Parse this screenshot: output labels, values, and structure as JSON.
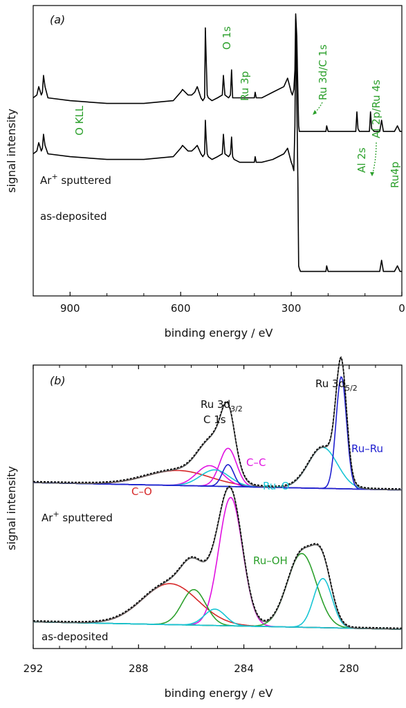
{
  "chart_data": [
    {
      "type": "line",
      "panel_label": "(a)",
      "xlabel": "binding energy / eV",
      "ylabel": "signal intensity",
      "xlim": [
        1000,
        0
      ],
      "x_reversed": true,
      "x_ticks": [
        900,
        600,
        300,
        0
      ],
      "y_ticks": "none",
      "grid": false,
      "legend": "none",
      "series": [
        {
          "name": "Ar+ sputtered",
          "color": "#000000",
          "x": [
            1000,
            990,
            985,
            978,
            975,
            972,
            968,
            960,
            900,
            800,
            700,
            620,
            600,
            595,
            580,
            570,
            562,
            555,
            545,
            540,
            535,
            533,
            531,
            528,
            525,
            515,
            500,
            487,
            484,
            480,
            470,
            465,
            462,
            459,
            455,
            440,
            420,
            400,
            398,
            395,
            380,
            350,
            320,
            310,
            300,
            297,
            293,
            290,
            288,
            285,
            282,
            280,
            278,
            275,
            270,
            260,
            220,
            206,
            204,
            200,
            180,
            160,
            125,
            122,
            119,
            115,
            100,
            88,
            85,
            82,
            75,
            60,
            55,
            50,
            40,
            20,
            12,
            5,
            0
          ],
          "y": [
            0.7,
            0.71,
            0.74,
            0.71,
            0.72,
            0.78,
            0.74,
            0.7,
            0.69,
            0.68,
            0.68,
            0.69,
            0.72,
            0.73,
            0.71,
            0.71,
            0.72,
            0.74,
            0.7,
            0.69,
            0.7,
            0.95,
            0.85,
            0.71,
            0.7,
            0.69,
            0.7,
            0.71,
            0.78,
            0.71,
            0.7,
            0.71,
            0.8,
            0.7,
            0.7,
            0.7,
            0.7,
            0.7,
            0.72,
            0.7,
            0.7,
            0.72,
            0.74,
            0.77,
            0.72,
            0.71,
            0.73,
            0.8,
            1.0,
            0.92,
            0.72,
            0.6,
            0.58,
            0.58,
            0.58,
            0.58,
            0.58,
            0.58,
            0.6,
            0.58,
            0.58,
            0.58,
            0.58,
            0.65,
            0.59,
            0.58,
            0.58,
            0.58,
            0.65,
            0.59,
            0.58,
            0.58,
            0.62,
            0.58,
            0.58,
            0.58,
            0.6,
            0.58,
            0.58
          ]
        },
        {
          "name": "as-deposited",
          "color": "#000000",
          "x": [
            1000,
            990,
            985,
            978,
            975,
            972,
            968,
            960,
            900,
            800,
            700,
            620,
            600,
            595,
            580,
            570,
            562,
            555,
            545,
            540,
            535,
            533,
            531,
            528,
            525,
            515,
            500,
            487,
            484,
            480,
            470,
            465,
            462,
            459,
            455,
            440,
            420,
            400,
            398,
            395,
            380,
            350,
            320,
            310,
            300,
            297,
            293,
            290,
            288,
            285,
            282,
            280,
            278,
            275,
            270,
            260,
            220,
            206,
            204,
            200,
            180,
            160,
            125,
            122,
            119,
            115,
            100,
            88,
            85,
            82,
            75,
            60,
            55,
            50,
            40,
            20,
            12,
            5,
            0
          ],
          "y": [
            0.5,
            0.51,
            0.54,
            0.51,
            0.52,
            0.57,
            0.53,
            0.5,
            0.49,
            0.48,
            0.48,
            0.49,
            0.52,
            0.53,
            0.51,
            0.51,
            0.52,
            0.53,
            0.5,
            0.49,
            0.5,
            0.62,
            0.56,
            0.5,
            0.49,
            0.48,
            0.49,
            0.5,
            0.57,
            0.5,
            0.49,
            0.5,
            0.56,
            0.49,
            0.48,
            0.47,
            0.47,
            0.47,
            0.49,
            0.47,
            0.47,
            0.48,
            0.5,
            0.52,
            0.47,
            0.46,
            0.44,
            0.6,
            0.98,
            0.7,
            0.4,
            0.1,
            0.09,
            0.08,
            0.08,
            0.08,
            0.08,
            0.08,
            0.1,
            0.08,
            0.08,
            0.08,
            0.08,
            0.08,
            0.08,
            0.08,
            0.08,
            0.08,
            0.08,
            0.08,
            0.08,
            0.08,
            0.12,
            0.08,
            0.08,
            0.08,
            0.1,
            0.08,
            0.08
          ]
        }
      ],
      "curve_labels": [
        {
          "text": "Ar",
          "sup": "+",
          "rest": " sputtered",
          "series": "Ar+ sputtered"
        },
        {
          "text": "as-deposited",
          "series": "as-deposited"
        }
      ],
      "annotations": [
        {
          "text": "O KLL",
          "color": "#2ca02c"
        },
        {
          "text": "O 1s",
          "color": "#2ca02c"
        },
        {
          "text": "Ru 3p",
          "color": "#2ca02c"
        },
        {
          "text": "Ru 3d/C 1s",
          "color": "#2ca02c"
        },
        {
          "text": "Al 2s",
          "color": "#2ca02c"
        },
        {
          "text": "Al 2p/Ru 4s",
          "color": "#2ca02c"
        },
        {
          "text": "Ru4p",
          "color": "#2ca02c"
        }
      ]
    },
    {
      "type": "line",
      "panel_label": "(b)",
      "xlabel": "binding energy / eV",
      "ylabel": "signal intensity",
      "xlim": [
        292,
        278
      ],
      "x_reversed": true,
      "x_ticks": [
        292,
        288,
        284,
        280
      ],
      "y_ticks": "none",
      "grid": false,
      "legend": "none",
      "curve_labels": [
        {
          "text": "Ar",
          "sup": "+",
          "rest": " sputtered"
        },
        {
          "text": "as-deposited"
        }
      ],
      "annotations": [
        {
          "text": "Ru 3d",
          "sub": "3/2",
          "color": "#111111"
        },
        {
          "text": "C 1s",
          "color": "#111111"
        },
        {
          "text": "Ru 3d",
          "sub": "5/2",
          "color": "#111111"
        },
        {
          "text": "C–O",
          "color": "#d62728"
        },
        {
          "text": "C–C",
          "color": "#e010e0"
        },
        {
          "text": "Ru–O",
          "color": "#17c5d5"
        },
        {
          "text": "Ru–Ru",
          "color": "#1f1fcf"
        },
        {
          "text": "Ru–OH",
          "color": "#2ca02c"
        }
      ],
      "components": {
        "sputtered": [
          {
            "label": "C–O",
            "color": "#d62728",
            "center": 286.5,
            "height": 0.055,
            "width": 1.2
          },
          {
            "label": "C–C",
            "color": "#e010e0",
            "center": 284.6,
            "height": 0.14,
            "width": 0.32
          },
          {
            "label": "C–C",
            "color": "#e010e0",
            "center": 285.3,
            "height": 0.075,
            "width": 0.5
          },
          {
            "label": "Ru–O",
            "color": "#17c5d5",
            "center": 281.0,
            "height": 0.15,
            "width": 0.55
          },
          {
            "label": "Ru–O",
            "color": "#17c5d5",
            "center": 285.1,
            "height": 0.06,
            "width": 0.55
          },
          {
            "label": "Ru–Ru",
            "color": "#1f1fcf",
            "center": 280.3,
            "height": 0.41,
            "width": 0.2
          },
          {
            "label": "Ru–Ru",
            "color": "#1f1fcf",
            "center": 284.6,
            "height": 0.08,
            "width": 0.22
          }
        ],
        "deposited": [
          {
            "label": "C–O",
            "color": "#d62728",
            "center": 286.8,
            "height": 0.15,
            "width": 1.05
          },
          {
            "label": "C–C",
            "color": "#e010e0",
            "center": 284.5,
            "height": 0.47,
            "width": 0.45
          },
          {
            "label": "Ru–OH",
            "color": "#2ca02c",
            "center": 281.8,
            "height": 0.27,
            "width": 0.55
          },
          {
            "label": "Ru–OH",
            "color": "#2ca02c",
            "center": 285.9,
            "height": 0.13,
            "width": 0.45
          },
          {
            "label": "Ru–O",
            "color": "#17c5d5",
            "center": 281.0,
            "height": 0.18,
            "width": 0.35
          },
          {
            "label": "Ru–O",
            "color": "#17c5d5",
            "center": 285.1,
            "height": 0.06,
            "width": 0.4
          }
        ]
      },
      "baselines": {
        "sputtered": {
          "color": "#000000",
          "y_at_292": 0.6,
          "y_at_278": 0.573
        },
        "deposited": {
          "color": "#000000",
          "y_at_292": 0.09,
          "y_at_278": 0.063
        }
      }
    }
  ]
}
